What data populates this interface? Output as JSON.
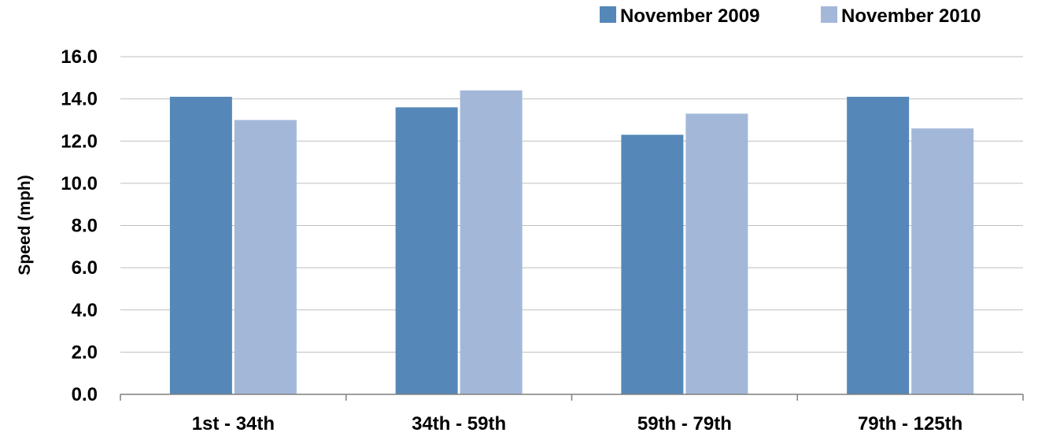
{
  "chart_data": {
    "type": "bar",
    "categories": [
      "1st - 34th",
      "34th - 59th",
      "59th - 79th",
      "79th - 125th"
    ],
    "series": [
      {
        "name": "November 2009",
        "values": [
          14.1,
          13.6,
          12.3,
          14.1
        ]
      },
      {
        "name": "November 2010",
        "values": [
          13.0,
          14.4,
          13.3,
          12.6
        ]
      }
    ],
    "xlabel": "",
    "ylabel": "Speed (mph)",
    "ylim": [
      0,
      16
    ],
    "yticks": [
      "0.0",
      "2.0",
      "4.0",
      "6.0",
      "8.0",
      "10.0",
      "12.0",
      "14.0",
      "16.0"
    ],
    "grid": true,
    "legend_position": "top-right",
    "colors": [
      "#5588b8",
      "#a3b8d9"
    ]
  }
}
